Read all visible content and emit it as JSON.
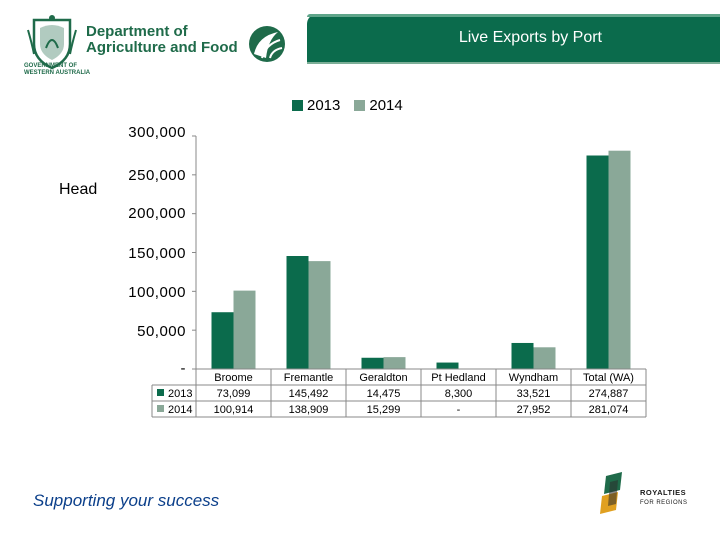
{
  "header": {
    "department_lines": [
      "Department of",
      "Agriculture and Food"
    ],
    "govt_lines": [
      "GOVERNMENT OF",
      "WESTERN AUSTRALIA"
    ],
    "title": "Live Exports by Port"
  },
  "chart_data": {
    "type": "bar",
    "title": "Live Exports by Port",
    "ylabel": "Head",
    "ylim": [
      0,
      300000
    ],
    "y_ticks": [
      0,
      50000,
      100000,
      150000,
      200000,
      250000,
      300000
    ],
    "y_tick_labels": [
      "-",
      "50,000",
      "100,000",
      "150,000",
      "200,000",
      "250,000",
      "300,000"
    ],
    "categories": [
      "Broome",
      "Fremantle",
      "Geraldton",
      "Pt Hedland",
      "Wyndham",
      "Total (WA)"
    ],
    "series": [
      {
        "name": "2013",
        "color": "#0b6b4c",
        "values": [
          73099,
          145492,
          14475,
          8300,
          33521,
          274887
        ],
        "labels": [
          "73,099",
          "145,492",
          "14,475",
          "8,300",
          "33,521",
          "274,887"
        ]
      },
      {
        "name": "2014",
        "color": "#8aa898",
        "values": [
          100914,
          138909,
          15299,
          0,
          27952,
          281074
        ],
        "labels": [
          "100,914",
          "138,909",
          "15,299",
          "-",
          "27,952",
          "281,074"
        ]
      }
    ],
    "legend_position": "top",
    "grid": false,
    "data_table": true
  },
  "footer": {
    "tagline": "Supporting your success",
    "logo_line1": "ROYALTIES",
    "logo_line2": "FOR REGIONS"
  },
  "colors": {
    "brand_green": "#0b6b4c",
    "light_green": "#8aa898",
    "tagline_blue": "#0b3f8a"
  },
  "icons": [
    "wa-government-crest-icon",
    "leaf-logo-icon",
    "royalties-for-regions-logo-icon"
  ]
}
